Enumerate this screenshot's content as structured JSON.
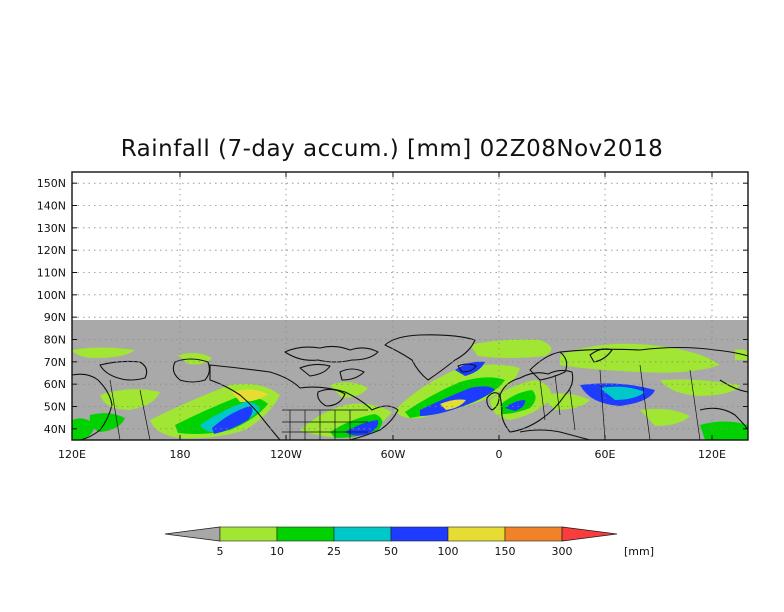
{
  "title": "Rainfall (7-day accum.) [mm] 02Z08Nov2018",
  "lat_labels": [
    "150N",
    "140N",
    "130N",
    "120N",
    "110N",
    "100N",
    "90N",
    "80N",
    "70N",
    "60N",
    "50N",
    "40N"
  ],
  "lon_labels": [
    "120E",
    "180",
    "120W",
    "60W",
    "0",
    "60E",
    "120E"
  ],
  "colorbar": {
    "unit": "[mm]",
    "thresholds": [
      "5",
      "10",
      "25",
      "50",
      "100",
      "150",
      "300"
    ],
    "colors": [
      "#a8a8a8",
      "#a0e632",
      "#00d200",
      "#00c8c8",
      "#1e3cff",
      "#e6dc32",
      "#f08228",
      "#fa3c3c"
    ]
  },
  "colors": {
    "no_data": "#ffffff",
    "dry": "#a9a9a9",
    "grid": "#8a8a8a",
    "coast": "#111111"
  }
}
